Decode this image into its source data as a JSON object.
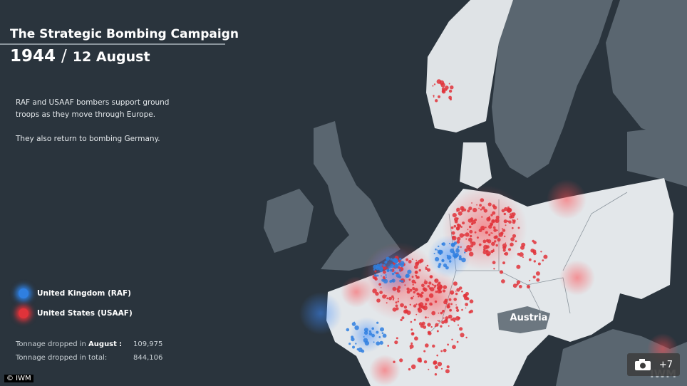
{
  "header": {
    "title": "The Strategic Bombing Campaign",
    "year": "1944",
    "separator": "/",
    "date": "12 August"
  },
  "description": [
    "RAF and USAAF bombers support ground troops as they move through Europe.",
    "They also return to bombing Germany."
  ],
  "legend": [
    {
      "label": "United Kingdom (RAF)",
      "color": "#2f7fe0"
    },
    {
      "label": "United States (USAAF)",
      "color": "#e0333a"
    }
  ],
  "stats": [
    {
      "label": "Tonnage dropped in",
      "month": "August",
      "colon": ":",
      "value": "109,975"
    },
    {
      "label": "Tonnage dropped in total:",
      "value": "844,106"
    }
  ],
  "map_labels": [
    "Austria"
  ],
  "credit": "© IWM",
  "watermark": "IWM",
  "photo_count": "+7"
}
